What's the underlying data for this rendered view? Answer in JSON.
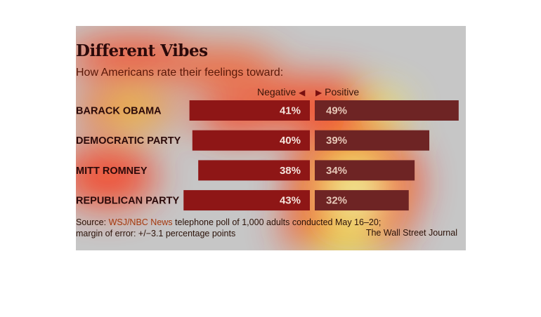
{
  "chart_data": {
    "type": "bar",
    "title": "Different Vibes",
    "subtitle": "How Americans rate their feelings toward:",
    "legend": {
      "negative": "Negative",
      "positive": "Positive"
    },
    "categories": [
      "BARACK OBAMA",
      "DEMOCRATIC PARTY",
      "MITT ROMNEY",
      "REPUBLICAN PARTY"
    ],
    "series": [
      {
        "name": "Negative",
        "values": [
          41,
          40,
          38,
          43
        ],
        "labels": [
          "41%",
          "40%",
          "38%",
          "43%"
        ],
        "color": "#8e1616"
      },
      {
        "name": "Positive",
        "values": [
          49,
          39,
          34,
          32
        ],
        "labels": [
          "49%",
          "39%",
          "34%",
          "32%"
        ],
        "color": "#6e2424"
      }
    ],
    "source": {
      "prefix": "Source: ",
      "link": "WSJ/NBC News",
      "text": " telephone poll of 1,000 adults conducted May 16–20;",
      "line2": "margin of error: +/−3.1 percentage points"
    },
    "credit": "The Wall Street Journal"
  },
  "colors": {
    "negative_bar": "#8e1616",
    "positive_bar": "#6e2424",
    "background": "#c6c6c6",
    "heatmap_hot": "#ffff66",
    "heatmap_warm": "#ff3a00"
  }
}
